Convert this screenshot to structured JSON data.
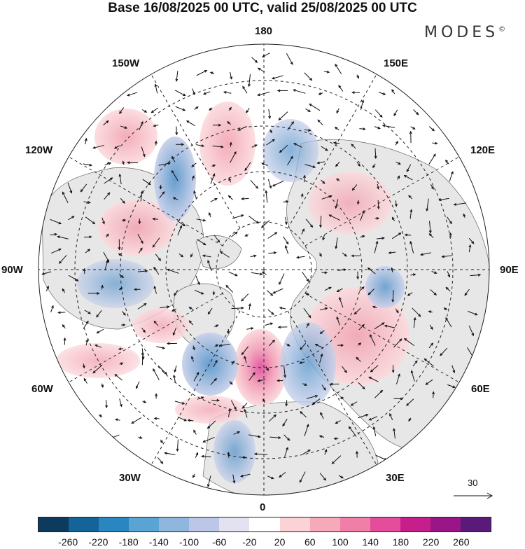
{
  "title": "Base 16/08/2025 00 UTC, valid 25/08/2025 00 UTC",
  "brand": "MODES",
  "brand_mark": "©",
  "lon_labels": {
    "n": "180",
    "s": "0",
    "e": "90E",
    "w": "90W",
    "ne1": "150E",
    "ne2": "120E",
    "nw1": "150W",
    "nw2": "120W",
    "se1": "60E",
    "se2": "30E",
    "sw1": "60W",
    "sw2": "30W"
  },
  "reference_vector": "30",
  "legend": {
    "ticks": [
      "-260",
      "-220",
      "-180",
      "-140",
      "-100",
      "-60",
      "-20",
      "20",
      "60",
      "100",
      "140",
      "180",
      "220",
      "260"
    ],
    "colors": [
      "#0d3b5e",
      "#14649a",
      "#2a86c0",
      "#5aa4d4",
      "#8fb7de",
      "#bcc6e6",
      "#e2e2f0",
      "#ffffff",
      "#fbd3d6",
      "#f6a9b8",
      "#ef7fa6",
      "#e44d9c",
      "#c61f8b",
      "#9a1686",
      "#5a1a7a"
    ]
  }
}
